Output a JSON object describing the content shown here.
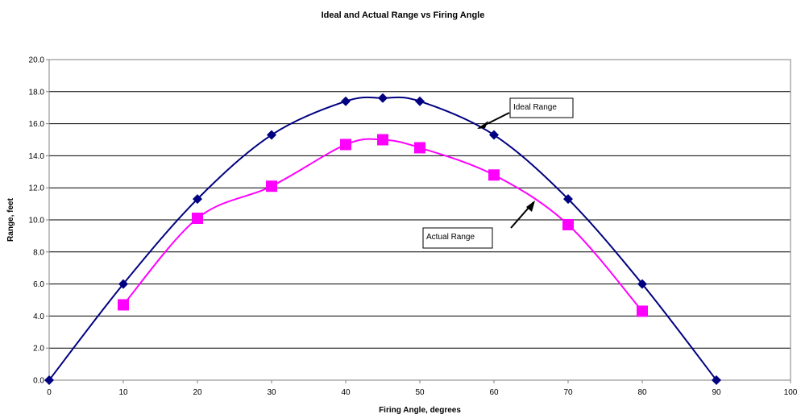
{
  "chart_data": {
    "type": "line",
    "title": "Ideal and Actual Range vs Firing Angle",
    "xlabel": "Firing Angle, degrees",
    "ylabel": "Range, feet",
    "xlim": [
      0,
      100
    ],
    "ylim": [
      0,
      20
    ],
    "x_ticks": [
      "0",
      "10",
      "20",
      "30",
      "40",
      "50",
      "60",
      "70",
      "80",
      "90",
      "100"
    ],
    "y_ticks": [
      "0.0",
      "2.0",
      "4.0",
      "6.0",
      "8.0",
      "10.0",
      "12.0",
      "14.0",
      "16.0",
      "18.0",
      "20.0"
    ],
    "grid": "horizontal",
    "series": [
      {
        "name": "Ideal Range",
        "marker": "diamond",
        "color": "#000080",
        "x": [
          0,
          10,
          20,
          30,
          40,
          45,
          50,
          60,
          70,
          80,
          90
        ],
        "y": [
          0.0,
          6.0,
          11.3,
          15.3,
          17.4,
          17.6,
          17.4,
          15.3,
          11.3,
          6.0,
          0.0
        ]
      },
      {
        "name": "Actual Range",
        "marker": "square",
        "color": "#FF00FF",
        "x": [
          10,
          20,
          30,
          40,
          45,
          50,
          60,
          70,
          80
        ],
        "y": [
          4.7,
          10.1,
          12.1,
          14.7,
          15.0,
          14.5,
          12.8,
          9.7,
          4.3
        ]
      }
    ],
    "annotations": [
      {
        "text": "Ideal Range",
        "target_series": 0
      },
      {
        "text": "Actual Range",
        "target_series": 1
      }
    ]
  }
}
